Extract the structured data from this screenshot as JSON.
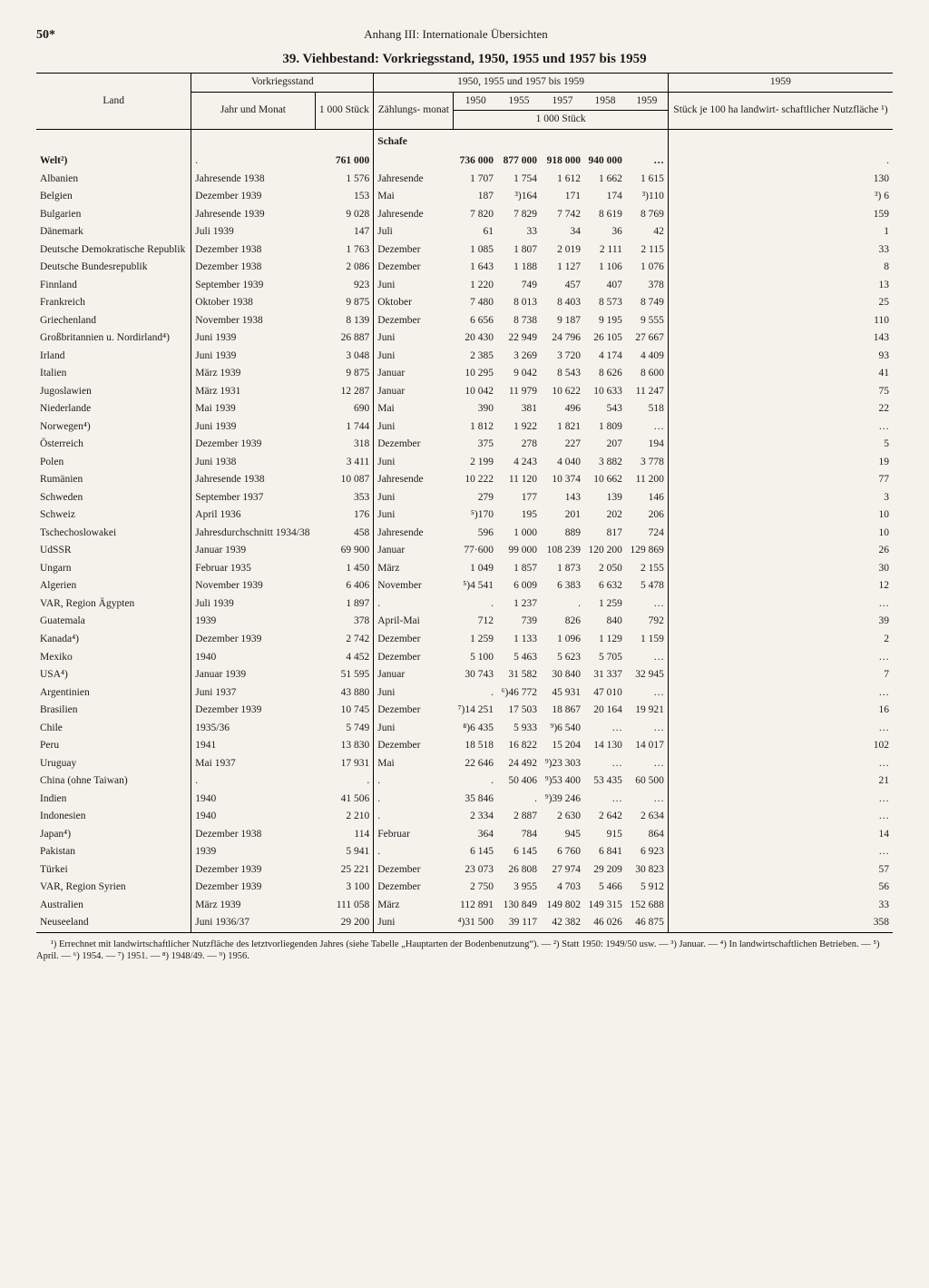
{
  "page_number": "50*",
  "running_head": "Anhang III: Internationale Übersichten",
  "title": "39. Viehbestand: Vorkriegsstand, 1950, 1955 und 1957 bis 1959",
  "header": {
    "land": "Land",
    "vorkrieg": "Vorkriegsstand",
    "period": "1950, 1955 und 1957 bis 1959",
    "last": "1959",
    "jahr_monat": "Jahr und Monat",
    "tausend": "1 000 Stück",
    "zaehl": "Zählungs- monat",
    "y1950": "1950",
    "y1955": "1955",
    "y1957": "1957",
    "y1958": "1958",
    "y1959": "1959",
    "unit_sub": "1 000 Stück",
    "last_sub": "Stück je 100 ha landwirt- schaftlicher Nutzfläche ¹)"
  },
  "section": "Schafe",
  "rows": [
    {
      "c": "Welt²)",
      "jm": ".",
      "t": "761 000",
      "zm": "",
      "v": [
        "736 000",
        "877 000",
        "918 000",
        "940 000",
        "…"
      ],
      "l": "."
    },
    {
      "c": "Albanien",
      "jm": "Jahresende 1938",
      "t": "1 576",
      "zm": "Jahresende",
      "v": [
        "1 707",
        "1 754",
        "1 612",
        "1 662",
        "1 615"
      ],
      "l": "130"
    },
    {
      "c": "Belgien",
      "jm": "Dezember 1939",
      "t": "153",
      "zm": "Mai",
      "v": [
        "187",
        "³)164",
        "171",
        "174",
        "³)110"
      ],
      "l": "³) 6"
    },
    {
      "c": "Bulgarien",
      "jm": "Jahresende 1939",
      "t": "9 028",
      "zm": "Jahresende",
      "v": [
        "7 820",
        "7 829",
        "7 742",
        "8 619",
        "8 769"
      ],
      "l": "159"
    },
    {
      "c": "Dänemark",
      "jm": "Juli 1939",
      "t": "147",
      "zm": "Juli",
      "v": [
        "61",
        "33",
        "34",
        "36",
        "42"
      ],
      "l": "1"
    },
    {
      "c": "Deutsche Demokratische Republik",
      "jm": "Dezember 1938",
      "t": "1 763",
      "zm": "Dezember",
      "v": [
        "1 085",
        "1 807",
        "2 019",
        "2 111",
        "2 115"
      ],
      "l": "33"
    },
    {
      "c": "Deutsche Bundesrepublik",
      "jm": "Dezember 1938",
      "t": "2 086",
      "zm": "Dezember",
      "v": [
        "1 643",
        "1 188",
        "1 127",
        "1 106",
        "1 076"
      ],
      "l": "8"
    },
    {
      "c": "Finnland",
      "jm": "September 1939",
      "t": "923",
      "zm": "Juni",
      "v": [
        "1 220",
        "749",
        "457",
        "407",
        "378"
      ],
      "l": "13"
    },
    {
      "c": "Frankreich",
      "jm": "Oktober 1938",
      "t": "9 875",
      "zm": "Oktober",
      "v": [
        "7 480",
        "8 013",
        "8 403",
        "8 573",
        "8 749"
      ],
      "l": "25"
    },
    {
      "c": "Griechenland",
      "jm": "November 1938",
      "t": "8 139",
      "zm": "Dezember",
      "v": [
        "6 656",
        "8 738",
        "9 187",
        "9 195",
        "9 555"
      ],
      "l": "110"
    },
    {
      "c": "Großbritannien u. Nordirland⁴)",
      "jm": "Juni 1939",
      "t": "26 887",
      "zm": "Juni",
      "v": [
        "20 430",
        "22 949",
        "24 796",
        "26 105",
        "27 667"
      ],
      "l": "143"
    },
    {
      "c": "Irland",
      "jm": "Juni 1939",
      "t": "3 048",
      "zm": "Juni",
      "v": [
        "2 385",
        "3 269",
        "3 720",
        "4 174",
        "4 409"
      ],
      "l": "93"
    },
    {
      "c": "Italien",
      "jm": "März 1939",
      "t": "9 875",
      "zm": "Januar",
      "v": [
        "10 295",
        "9 042",
        "8 543",
        "8 626",
        "8 600"
      ],
      "l": "41"
    },
    {
      "c": "Jugoslawien",
      "jm": "März 1931",
      "t": "12 287",
      "zm": "Januar",
      "v": [
        "10 042",
        "11 979",
        "10 622",
        "10 633",
        "11 247"
      ],
      "l": "75"
    },
    {
      "c": "Niederlande",
      "jm": "Mai 1939",
      "t": "690",
      "zm": "Mai",
      "v": [
        "390",
        "381",
        "496",
        "543",
        "518"
      ],
      "l": "22"
    },
    {
      "c": "Norwegen⁴)",
      "jm": "Juni 1939",
      "t": "1 744",
      "zm": "Juni",
      "v": [
        "1 812",
        "1 922",
        "1 821",
        "1 809",
        "…"
      ],
      "l": "…"
    },
    {
      "c": "Österreich",
      "jm": "Dezember 1939",
      "t": "318",
      "zm": "Dezember",
      "v": [
        "375",
        "278",
        "227",
        "207",
        "194"
      ],
      "l": "5"
    },
    {
      "c": "Polen",
      "jm": "Juni 1938",
      "t": "3 411",
      "zm": "Juni",
      "v": [
        "2 199",
        "4 243",
        "4 040",
        "3 882",
        "3 778"
      ],
      "l": "19"
    },
    {
      "c": "Rumänien",
      "jm": "Jahresende 1938",
      "t": "10 087",
      "zm": "Jahresende",
      "v": [
        "10 222",
        "11 120",
        "10 374",
        "10 662",
        "11 200"
      ],
      "l": "77"
    },
    {
      "c": "Schweden",
      "jm": "September 1937",
      "t": "353",
      "zm": "Juni",
      "v": [
        "279",
        "177",
        "143",
        "139",
        "146"
      ],
      "l": "3"
    },
    {
      "c": "Schweiz",
      "jm": "April 1936",
      "t": "176",
      "zm": "Juni",
      "v": [
        "⁵)170",
        "195",
        "201",
        "202",
        "206"
      ],
      "l": "10"
    },
    {
      "c": "Tschechoslowakei",
      "jm": "Jahresdurchschnitt 1934/38",
      "t": "458",
      "zm": "Jahresende",
      "v": [
        "596",
        "1 000",
        "889",
        "817",
        "724"
      ],
      "l": "10"
    },
    {
      "c": "UdSSR",
      "jm": "Januar 1939",
      "t": "69 900",
      "zm": "Januar",
      "v": [
        "77·600",
        "99 000",
        "108 239",
        "120 200",
        "129 869"
      ],
      "l": "26"
    },
    {
      "c": "Ungarn",
      "jm": "Februar 1935",
      "t": "1 450",
      "zm": "März",
      "v": [
        "1 049",
        "1 857",
        "1 873",
        "2 050",
        "2 155"
      ],
      "l": "30"
    },
    {
      "c": "Algerien",
      "jm": "November 1939",
      "t": "6 406",
      "zm": "November",
      "v": [
        "⁵)4 541",
        "6 009",
        "6 383",
        "6 632",
        "5 478"
      ],
      "l": "12"
    },
    {
      "c": "VAR, Region Ägypten",
      "jm": "Juli 1939",
      "t": "1 897",
      "zm": ".",
      "v": [
        ".",
        "1 237",
        ".",
        "1 259",
        "…"
      ],
      "l": "…"
    },
    {
      "c": "Guatemala",
      "jm": "1939",
      "t": "378",
      "zm": "April-Mai",
      "v": [
        "712",
        "739",
        "826",
        "840",
        "792"
      ],
      "l": "39"
    },
    {
      "c": "Kanada⁴)",
      "jm": "Dezember 1939",
      "t": "2 742",
      "zm": "Dezember",
      "v": [
        "1 259",
        "1 133",
        "1 096",
        "1 129",
        "1 159"
      ],
      "l": "2"
    },
    {
      "c": "Mexiko",
      "jm": "1940",
      "t": "4 452",
      "zm": "Dezember",
      "v": [
        "5 100",
        "5 463",
        "5 623",
        "5 705",
        "…"
      ],
      "l": "…"
    },
    {
      "c": "USA⁴)",
      "jm": "Januar 1939",
      "t": "51 595",
      "zm": "Januar",
      "v": [
        "30 743",
        "31 582",
        "30 840",
        "31 337",
        "32 945"
      ],
      "l": "7"
    },
    {
      "c": "Argentinien",
      "jm": "Juni 1937",
      "t": "43 880",
      "zm": "Juni",
      "v": [
        ".",
        "⁶)46 772",
        "45 931",
        "47 010",
        "…"
      ],
      "l": "…"
    },
    {
      "c": "Brasilien",
      "jm": "Dezember 1939",
      "t": "10 745",
      "zm": "Dezember",
      "v": [
        "⁷)14 251",
        "17 503",
        "18 867",
        "20 164",
        "19 921"
      ],
      "l": "16"
    },
    {
      "c": "Chile",
      "jm": "1935/36",
      "t": "5 749",
      "zm": "Juni",
      "v": [
        "⁸)6 435",
        "5 933",
        "⁹)6 540",
        "…",
        "…"
      ],
      "l": "…"
    },
    {
      "c": "Peru",
      "jm": "1941",
      "t": "13 830",
      "zm": "Dezember",
      "v": [
        "18 518",
        "16 822",
        "15 204",
        "14 130",
        "14 017"
      ],
      "l": "102"
    },
    {
      "c": "Uruguay",
      "jm": "Mai 1937",
      "t": "17 931",
      "zm": "Mai",
      "v": [
        "22 646",
        "24 492",
        "⁹)23 303",
        "…",
        "…"
      ],
      "l": "…"
    },
    {
      "c": "China (ohne Taiwan)",
      "jm": ".",
      "t": ".",
      "zm": ".",
      "v": [
        ".",
        "50 406",
        "⁹)53 400",
        "53 435",
        "60 500"
      ],
      "l": "21"
    },
    {
      "c": "Indien",
      "jm": "1940",
      "t": "41 506",
      "zm": ".",
      "v": [
        "35 846",
        ".",
        "⁹)39 246",
        "…",
        "…"
      ],
      "l": "…"
    },
    {
      "c": "Indonesien",
      "jm": "1940",
      "t": "2 210",
      "zm": ".",
      "v": [
        "2 334",
        "2 887",
        "2 630",
        "2 642",
        "2 634"
      ],
      "l": "…"
    },
    {
      "c": "Japan⁴)",
      "jm": "Dezember 1938",
      "t": "114",
      "zm": "Februar",
      "v": [
        "364",
        "784",
        "945",
        "915",
        "864"
      ],
      "l": "14"
    },
    {
      "c": "Pakistan",
      "jm": "1939",
      "t": "5 941",
      "zm": ".",
      "v": [
        "6 145",
        "6 145",
        "6 760",
        "6 841",
        "6 923"
      ],
      "l": "…"
    },
    {
      "c": "Türkei",
      "jm": "Dezember 1939",
      "t": "25 221",
      "zm": "Dezember",
      "v": [
        "23 073",
        "26 808",
        "27 974",
        "29 209",
        "30 823"
      ],
      "l": "57"
    },
    {
      "c": "VAR, Region Syrien",
      "jm": "Dezember 1939",
      "t": "3 100",
      "zm": "Dezember",
      "v": [
        "2 750",
        "3 955",
        "4 703",
        "5 466",
        "5 912"
      ],
      "l": "56"
    },
    {
      "c": "Australien",
      "jm": "März 1939",
      "t": "111 058",
      "zm": "März",
      "v": [
        "112 891",
        "130 849",
        "149 802",
        "149 315",
        "152 688"
      ],
      "l": "33"
    },
    {
      "c": "Neuseeland",
      "jm": "Juni 1936/37",
      "t": "29 200",
      "zm": "Juni",
      "v": [
        "⁴)31 500",
        "39 117",
        "42 382",
        "46 026",
        "46 875"
      ],
      "l": "358"
    }
  ],
  "footnotes": "¹) Errechnet mit landwirtschaftlicher Nutzfläche des letztvorliegenden Jahres (siehe Tabelle „Hauptarten der Bodenbenutzung“). — ²) Statt 1950: 1949/50 usw. — ³) Januar. — ⁴) In landwirtschaftlichen Betrieben. — ⁵) April. — ⁶) 1954. — ⁷) 1951. — ⁸) 1948/49. — ⁹) 1956."
}
